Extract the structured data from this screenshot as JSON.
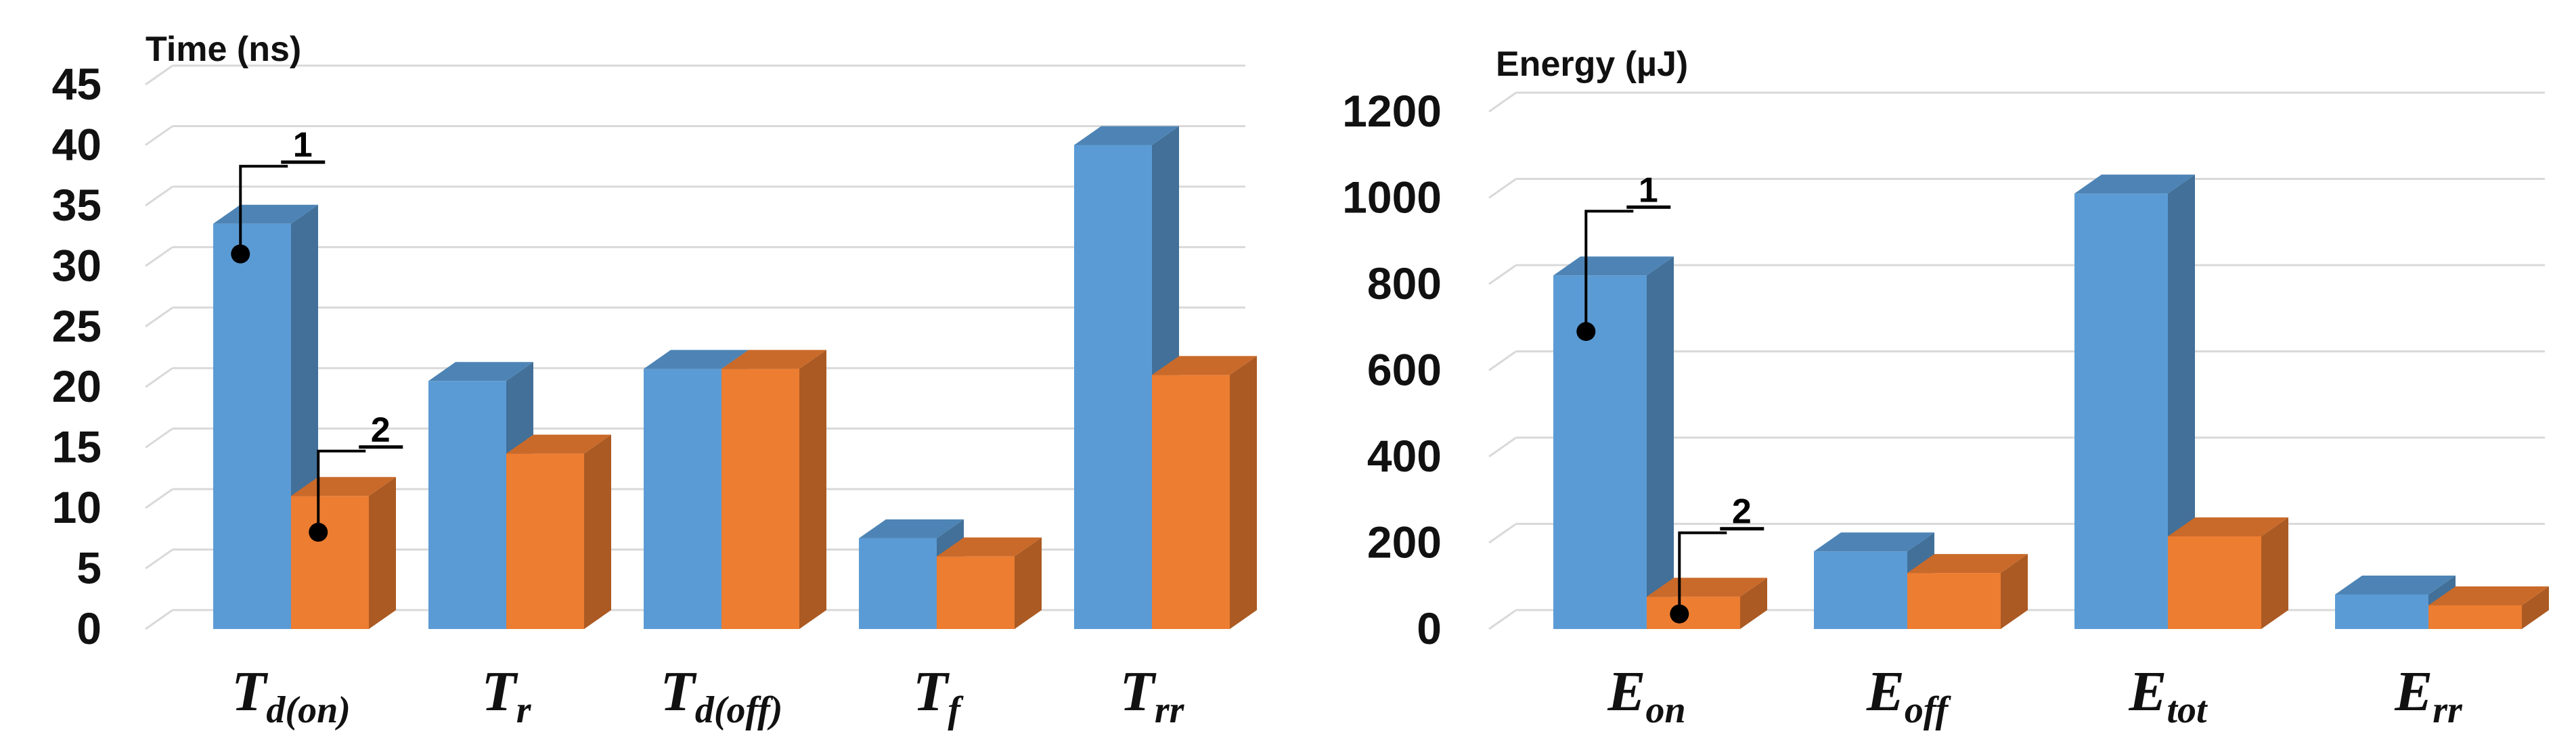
{
  "chart_data": [
    {
      "type": "bar",
      "style": "3d-clustered-column",
      "ylabel": "Time (ns)",
      "ylim": [
        0,
        45
      ],
      "yticks": [
        "0",
        "5",
        "10",
        "15",
        "20",
        "25",
        "30",
        "35",
        "40",
        "45"
      ],
      "grid": true,
      "categories": [
        {
          "main": "T",
          "sub": "d(on)"
        },
        {
          "main": "T",
          "sub": "r"
        },
        {
          "main": "T",
          "sub": "d(off)"
        },
        {
          "main": "T",
          "sub": "f"
        },
        {
          "main": "T",
          "sub": "rr"
        }
      ],
      "series": [
        {
          "name": "1",
          "color": "#5B9BD5",
          "values": [
            33.5,
            20.5,
            21.5,
            7.5,
            40
          ]
        },
        {
          "name": "2",
          "color": "#ED7D31",
          "values": [
            11,
            14.5,
            21.5,
            6,
            21
          ]
        }
      ],
      "annotations": [
        {
          "label": "1",
          "series": 0,
          "category": 0,
          "value": 31
        },
        {
          "label": "2",
          "series": 1,
          "category": 0,
          "value": 8
        }
      ]
    },
    {
      "type": "bar",
      "style": "3d-clustered-column",
      "ylabel": "Energy (µJ)",
      "ylim": [
        0,
        1200
      ],
      "yticks": [
        "0",
        "200",
        "400",
        "600",
        "800",
        "1000",
        "1200"
      ],
      "grid": true,
      "categories": [
        {
          "main": "E",
          "sub": "on"
        },
        {
          "main": "E",
          "sub": "off"
        },
        {
          "main": "E",
          "sub": "tot"
        },
        {
          "main": "E",
          "sub": "rr"
        }
      ],
      "series": [
        {
          "name": "1",
          "color": "#5B9BD5",
          "values": [
            820,
            180,
            1010,
            80
          ]
        },
        {
          "name": "2",
          "color": "#ED7D31",
          "values": [
            75,
            130,
            215,
            55
          ]
        }
      ],
      "annotations": [
        {
          "label": "1",
          "series": 0,
          "category": 0,
          "value": 690
        },
        {
          "label": "2",
          "series": 1,
          "category": 0,
          "value": 35
        }
      ]
    }
  ]
}
